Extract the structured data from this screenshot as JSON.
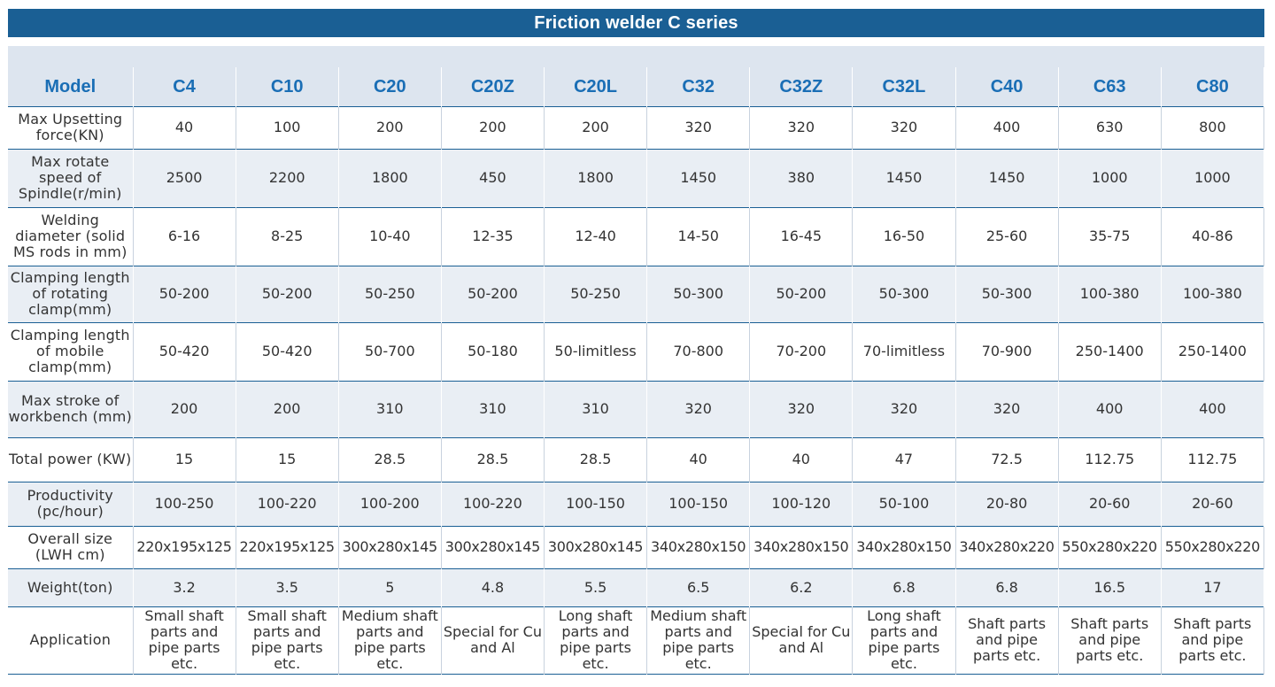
{
  "title": "Friction welder C series",
  "header": {
    "label": "Model",
    "models": [
      "C4",
      "C10",
      "C20",
      "C20Z",
      "C20L",
      "C32",
      "C32Z",
      "C32L",
      "C40",
      "C63",
      "C80"
    ]
  },
  "rows": [
    {
      "label": "Max Upsetting force(KN)",
      "values": [
        "40",
        "100",
        "200",
        "200",
        "200",
        "320",
        "320",
        "320",
        "400",
        "630",
        "800"
      ]
    },
    {
      "label": "Max rotate speed of Spindle(r/min)",
      "values": [
        "2500",
        "2200",
        "1800",
        "450",
        "1800",
        "1450",
        "380",
        "1450",
        "1450",
        "1000",
        "1000"
      ]
    },
    {
      "label": "Welding diameter (solid MS rods in mm)",
      "values": [
        "6-16",
        "8-25",
        "10-40",
        "12-35",
        "12-40",
        "14-50",
        "16-45",
        "16-50",
        "25-60",
        "35-75",
        "40-86"
      ]
    },
    {
      "label": "Clamping length of rotating clamp(mm)",
      "values": [
        "50-200",
        "50-200",
        "50-250",
        "50-200",
        "50-250",
        "50-300",
        "50-200",
        "50-300",
        "50-300",
        "100-380",
        "100-380"
      ]
    },
    {
      "label": "Clamping length of mobile clamp(mm)",
      "values": [
        "50-420",
        "50-420",
        "50-700",
        "50-180",
        "50-limitless",
        "70-800",
        "70-200",
        "70-limitless",
        "70-900",
        "250-1400",
        "250-1400"
      ]
    },
    {
      "label": "Max stroke of workbench (mm)",
      "values": [
        "200",
        "200",
        "310",
        "310",
        "310",
        "320",
        "320",
        "320",
        "320",
        "400",
        "400"
      ]
    },
    {
      "label": "Total power (KW)",
      "values": [
        "15",
        "15",
        "28.5",
        "28.5",
        "28.5",
        "40",
        "40",
        "47",
        "72.5",
        "112.75",
        "112.75"
      ]
    },
    {
      "label": "Productivity (pc/hour)",
      "values": [
        "100-250",
        "100-220",
        "100-200",
        "100-220",
        "100-150",
        "100-150",
        "100-120",
        "50-100",
        "20-80",
        "20-60",
        "20-60"
      ]
    },
    {
      "label": "Overall size (LWH cm)",
      "values": [
        "220x195x125",
        "220x195x125",
        "300x280x145",
        "300x280x145",
        "300x280x145",
        "340x280x150",
        "340x280x150",
        "340x280x150",
        "340x280x220",
        "550x280x220",
        "550x280x220"
      ]
    },
    {
      "label": "Weight(ton)",
      "values": [
        "3.2",
        "3.5",
        "5",
        "4.8",
        "5.5",
        "6.5",
        "6.2",
        "6.8",
        "6.8",
        "16.5",
        "17"
      ]
    },
    {
      "label": "Application",
      "values": [
        "Small shaft parts and pipe parts etc.",
        "Small shaft parts and pipe parts etc.",
        "Medium shaft parts and pipe parts etc.",
        "Special for Cu and Al",
        "Long shaft parts and pipe parts etc.",
        "Medium shaft parts and pipe parts etc.",
        "Special for Cu and Al",
        "Long shaft parts and pipe parts etc.",
        "Shaft parts and pipe parts etc.",
        "Shaft parts and pipe parts etc.",
        "Shaft parts and pipe parts etc."
      ]
    }
  ],
  "colors": {
    "title_bg": "#1a5f94",
    "header_text": "#1a6eb5",
    "band": "#dde5ef",
    "alt_row": "#e9eef4"
  }
}
